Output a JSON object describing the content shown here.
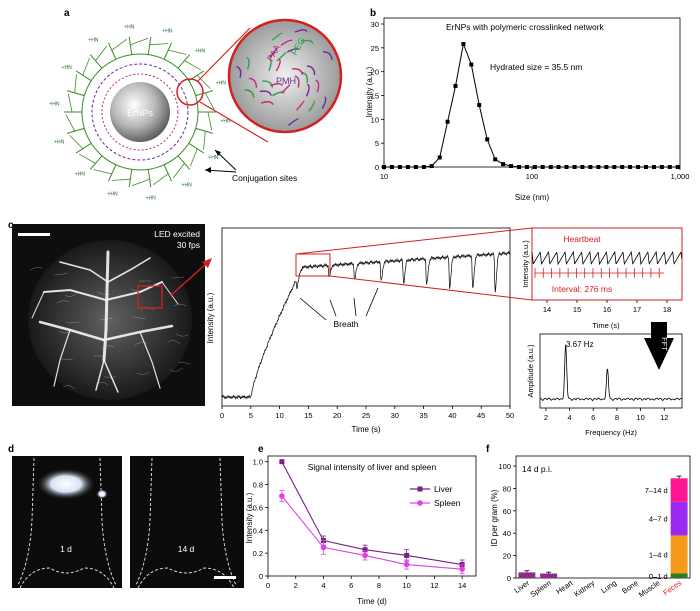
{
  "panel_labels": {
    "a": "a",
    "b": "b",
    "c": "c",
    "d": "d",
    "e": "e",
    "f": "f"
  },
  "panel_a": {
    "core_label": "ErNPs",
    "amine_label": "+HN",
    "zoom_labels": {
      "paa": "PAA",
      "peg": "PEG",
      "pmh": "PMH"
    },
    "conjugation_label": "Conjugation sites",
    "colors": {
      "paa": "#c2287a",
      "peg": "#2e9e4a",
      "pmh": "#6a2a9a",
      "ligand": "#3a8a2a"
    }
  },
  "panel_c_image": {
    "led_label": "LED excited",
    "fps_label": "30 fps"
  },
  "panel_c_trace": {
    "breath_label": "Breath",
    "heartbeat_label": "Heartbeat",
    "interval_label": "Interval: 276 ms",
    "peak_label": "3.67 Hz",
    "fft_label": "FFT",
    "accent_color": "#d62020"
  },
  "panel_d": {
    "day1_label": "1 d",
    "day14_label": "14 d"
  },
  "panel_f_extra": {
    "period_label": "14 d p.i."
  },
  "chart_data": [
    {
      "id": "b",
      "type": "line",
      "title": "ErNPs with polymeric crosslinked network",
      "annotation": "Hydrated size = 35.5 nm",
      "xlabel": "Size (nm)",
      "ylabel": "Intensity (a.u.)",
      "xscale": "log",
      "xlim": [
        10,
        1000
      ],
      "ylim": [
        0,
        30
      ],
      "xticks": [
        "10",
        "100",
        "1,000"
      ],
      "yticks": [
        "0",
        "5",
        "10",
        "15",
        "20",
        "25",
        "30"
      ],
      "x": [
        10,
        11.3,
        12.8,
        14.5,
        16.4,
        18.6,
        21,
        23.8,
        26.9,
        30.4,
        34.4,
        38.9,
        44,
        49.8,
        56.4,
        63.8,
        72.2,
        81.7,
        92.4,
        104.5,
        118,
        134,
        151,
        171,
        194,
        219,
        248,
        281,
        318,
        360,
        407,
        460,
        521,
        589,
        667,
        754,
        853,
        965
      ],
      "y": [
        0,
        0,
        0,
        0,
        0,
        0,
        0.2,
        2,
        9.5,
        17,
        25.8,
        21.5,
        13,
        5.8,
        1.6,
        0.6,
        0.2,
        0,
        0,
        0,
        0,
        0,
        0,
        0,
        0,
        0,
        0,
        0,
        0,
        0,
        0,
        0,
        0,
        0,
        0,
        0,
        0,
        0
      ]
    },
    {
      "id": "c-trace",
      "type": "line",
      "xlabel": "Time (s)",
      "ylabel": "Intensity (a.u.)",
      "xlim": [
        0,
        50
      ],
      "xticks": [
        "0",
        "5",
        "10",
        "15",
        "20",
        "25",
        "30",
        "35",
        "40",
        "45",
        "50"
      ],
      "ylim": [
        0,
        1
      ],
      "dips_s": [
        13,
        18.6,
        23,
        27.6,
        31.5,
        35.5,
        39.5,
        43.5,
        47.4
      ],
      "rise": {
        "baseline": 0.05,
        "plateau": 0.78,
        "onset_s": 5,
        "plateau_s": 14
      }
    },
    {
      "id": "c-heartbeat",
      "type": "line",
      "xlabel": "Time (s)",
      "ylabel": "Intensity (a.u.)",
      "xlim": [
        13.5,
        18.5
      ],
      "xticks": [
        "14",
        "15",
        "16",
        "17",
        "18"
      ],
      "period_ms": 276
    },
    {
      "id": "c-fft",
      "type": "line",
      "xlabel": "Frequency (Hz)",
      "ylabel": "Amplitude (a.u.)",
      "xlim": [
        1.5,
        13.5
      ],
      "xticks": [
        "2",
        "4",
        "6",
        "8",
        "10",
        "12"
      ],
      "peaks": [
        {
          "hz": 3.67,
          "amp": 1.0
        },
        {
          "hz": 7.2,
          "amp": 0.55
        }
      ]
    },
    {
      "id": "e",
      "type": "line",
      "title": "Signal intensity of liver and spleen",
      "xlabel": "Time (d)",
      "ylabel": "Intensity (a.u.)",
      "xlim": [
        0,
        15
      ],
      "ylim": [
        0,
        1.05
      ],
      "xticks": [
        "0",
        "2",
        "4",
        "6",
        "8",
        "10",
        "12",
        "14"
      ],
      "yticks": [
        "0",
        "0.2",
        "0.4",
        "0.6",
        "0.8",
        "1.0"
      ],
      "x": [
        1,
        4,
        7,
        10,
        14
      ],
      "series": [
        {
          "name": "Liver",
          "color": "#7a1f8a",
          "marker": "square",
          "values": [
            1.0,
            0.31,
            0.23,
            0.18,
            0.1
          ],
          "err": [
            0,
            0.04,
            0.04,
            0.05,
            0.04
          ]
        },
        {
          "name": "Spleen",
          "color": "#e040e8",
          "marker": "circle",
          "values": [
            0.7,
            0.25,
            0.18,
            0.1,
            0.06
          ],
          "err": [
            0.05,
            0.06,
            0.04,
            0.04,
            0.04
          ]
        }
      ]
    },
    {
      "id": "f",
      "type": "bar",
      "xlabel": "",
      "ylabel": "ID per gram (%)",
      "ylim": [
        0,
        100
      ],
      "yticks": [
        "0",
        "20",
        "40",
        "60",
        "80",
        "100"
      ],
      "categories": [
        "Liver",
        "Spleen",
        "Heart",
        "Kidney",
        "Lung",
        "Bone",
        "Muscle",
        "Feces"
      ],
      "values": [
        5,
        4,
        0,
        0,
        0,
        0,
        0,
        89
      ],
      "err": [
        1.5,
        1.2,
        0,
        0,
        0,
        0,
        0,
        2
      ],
      "bar_color": "#8e2a8e",
      "highlight_color": "#d62020",
      "feces_stack": [
        {
          "label": "0–1 d",
          "value": 4,
          "color": "#2a7a2a"
        },
        {
          "label": "1–4 d",
          "value": 34,
          "color": "#f59a1a"
        },
        {
          "label": "4–7 d",
          "value": 30,
          "color": "#9b2af0"
        },
        {
          "label": "7–14 d",
          "value": 21,
          "color": "#ff1493"
        }
      ]
    }
  ]
}
